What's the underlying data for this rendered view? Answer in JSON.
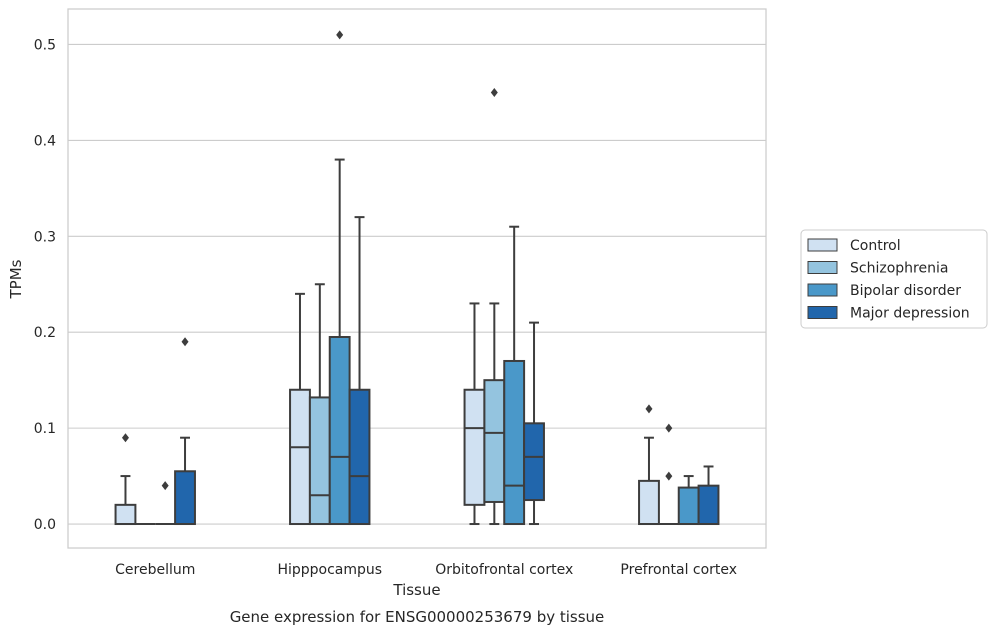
{
  "chart_data": {
    "type": "box",
    "title": "",
    "caption": "Gene expression for ENSG00000253679 by tissue",
    "xlabel": "Tissue",
    "ylabel": "TPMs",
    "ylim": [
      -0.025,
      0.537
    ],
    "yticks": [
      0.0,
      0.1,
      0.2,
      0.3,
      0.4,
      0.5
    ],
    "ytick_labels": [
      "0.0",
      "0.1",
      "0.2",
      "0.3",
      "0.4",
      "0.5"
    ],
    "grid": "horizontal",
    "legend_position": "right",
    "categories": [
      "Cerebellum",
      "Hipppocampus",
      "Orbitofrontal cortex",
      "Prefrontal cortex"
    ],
    "series": [
      {
        "name": "Control",
        "color": "#d0e1f2",
        "boxes": [
          {
            "q1": 0.0,
            "median": 0.0,
            "q3": 0.02,
            "whisker_low": 0.0,
            "whisker_high": 0.05,
            "outliers": [
              0.09
            ]
          },
          {
            "q1": 0.0,
            "median": 0.08,
            "q3": 0.14,
            "whisker_low": 0.0,
            "whisker_high": 0.24,
            "outliers": []
          },
          {
            "q1": 0.02,
            "median": 0.1,
            "q3": 0.14,
            "whisker_low": 0.0,
            "whisker_high": 0.23,
            "outliers": []
          },
          {
            "q1": 0.0,
            "median": 0.0,
            "q3": 0.045,
            "whisker_low": 0.0,
            "whisker_high": 0.09,
            "outliers": [
              0.12
            ]
          }
        ]
      },
      {
        "name": "Schizophrenia",
        "color": "#94c4df",
        "boxes": [
          {
            "q1": 0.0,
            "median": 0.0,
            "q3": 0.0,
            "whisker_low": 0.0,
            "whisker_high": 0.0,
            "outliers": []
          },
          {
            "q1": 0.0,
            "median": 0.03,
            "q3": 0.132,
            "whisker_low": 0.0,
            "whisker_high": 0.25,
            "outliers": []
          },
          {
            "q1": 0.023,
            "median": 0.095,
            "q3": 0.15,
            "whisker_low": 0.0,
            "whisker_high": 0.23,
            "outliers": [
              0.45
            ]
          },
          {
            "q1": 0.0,
            "median": 0.0,
            "q3": 0.0,
            "whisker_low": 0.0,
            "whisker_high": 0.0,
            "outliers": [
              0.05,
              0.1
            ]
          }
        ]
      },
      {
        "name": "Bipolar disorder",
        "color": "#4a98c9",
        "boxes": [
          {
            "q1": 0.0,
            "median": 0.0,
            "q3": 0.0,
            "whisker_low": 0.0,
            "whisker_high": 0.0,
            "outliers": [
              0.04
            ]
          },
          {
            "q1": 0.0,
            "median": 0.07,
            "q3": 0.195,
            "whisker_low": 0.0,
            "whisker_high": 0.38,
            "outliers": [
              0.51
            ]
          },
          {
            "q1": 0.0,
            "median": 0.04,
            "q3": 0.17,
            "whisker_low": 0.0,
            "whisker_high": 0.31,
            "outliers": []
          },
          {
            "q1": 0.0,
            "median": 0.0,
            "q3": 0.038,
            "whisker_low": 0.0,
            "whisker_high": 0.05,
            "outliers": []
          }
        ]
      },
      {
        "name": "Major depression",
        "color": "#2166ac",
        "boxes": [
          {
            "q1": 0.0,
            "median": 0.0,
            "q3": 0.055,
            "whisker_low": 0.0,
            "whisker_high": 0.09,
            "outliers": [
              0.19
            ]
          },
          {
            "q1": 0.0,
            "median": 0.05,
            "q3": 0.14,
            "whisker_low": 0.0,
            "whisker_high": 0.32,
            "outliers": []
          },
          {
            "q1": 0.025,
            "median": 0.07,
            "q3": 0.105,
            "whisker_low": 0.0,
            "whisker_high": 0.21,
            "outliers": []
          },
          {
            "q1": 0.0,
            "median": 0.0,
            "q3": 0.04,
            "whisker_low": 0.0,
            "whisker_high": 0.06,
            "outliers": []
          }
        ]
      }
    ]
  }
}
